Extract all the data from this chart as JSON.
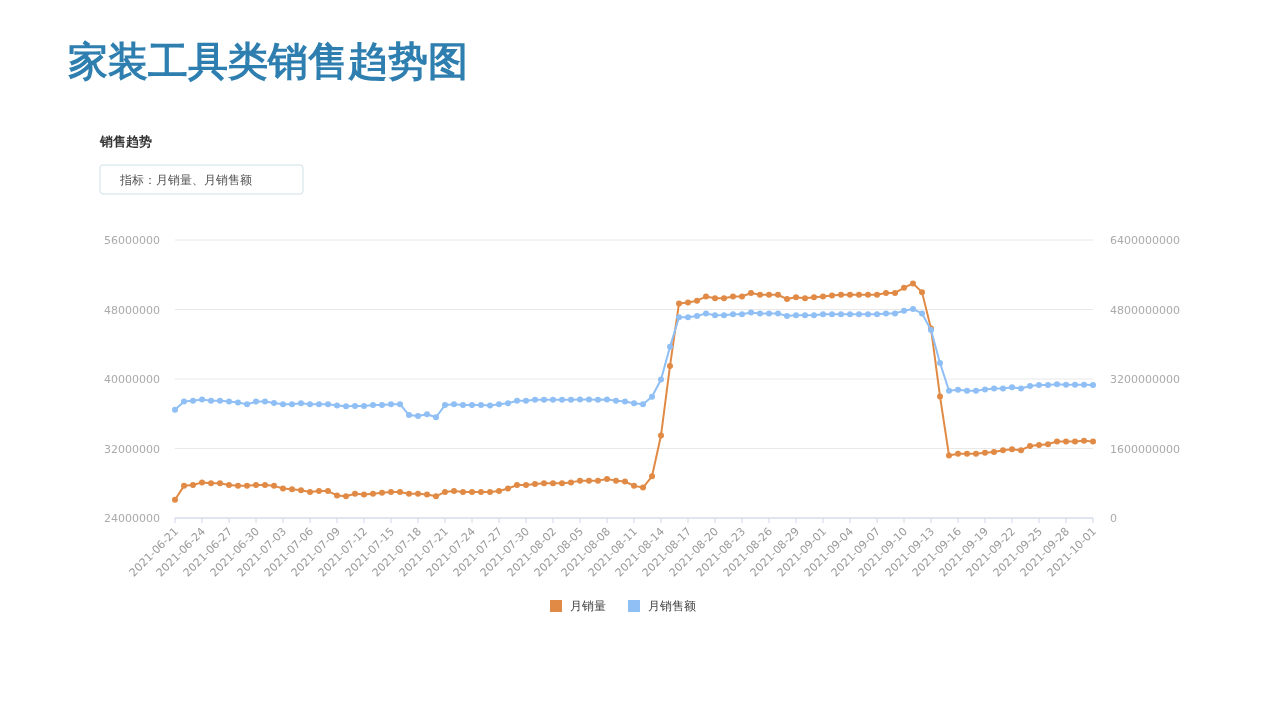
{
  "chart_data": {
    "type": "line",
    "title": "家装工具类销售趋势图",
    "subtitle": "销售趋势",
    "annotations": [
      "指标：月销量、月销售额"
    ],
    "categories": [
      "2021-06-21",
      null,
      null,
      "2021-06-24",
      null,
      null,
      "2021-06-27",
      null,
      null,
      "2021-06-30",
      null,
      null,
      "2021-07-03",
      null,
      null,
      "2021-07-06",
      null,
      null,
      "2021-07-09",
      null,
      null,
      "2021-07-12",
      null,
      null,
      "2021-07-15",
      null,
      null,
      "2021-07-18",
      null,
      null,
      "2021-07-21",
      null,
      null,
      "2021-07-24",
      null,
      null,
      "2021-07-27",
      null,
      null,
      "2021-07-30",
      null,
      null,
      "2021-08-02",
      null,
      null,
      "2021-08-05",
      null,
      null,
      "2021-08-08",
      null,
      null,
      "2021-08-11",
      null,
      null,
      "2021-08-14",
      null,
      null,
      "2021-08-17",
      null,
      null,
      "2021-08-20",
      null,
      null,
      "2021-08-23",
      null,
      null,
      "2021-08-26",
      null,
      null,
      "2021-08-29",
      null,
      null,
      "2021-09-01",
      null,
      null,
      "2021-09-04",
      null,
      null,
      "2021-09-07",
      null,
      null,
      "2021-09-10",
      null,
      null,
      "2021-09-13",
      null,
      null,
      "2021-09-16",
      null,
      null,
      "2021-09-19",
      null,
      null,
      "2021-09-22",
      null,
      null,
      "2021-09-25",
      null,
      null,
      "2021-09-28",
      null,
      null,
      "2021-10-01"
    ],
    "series": [
      {
        "name": "月销量",
        "color": "#e08a45",
        "values": [
          26100000,
          27700000,
          27800000,
          28100000,
          28000000,
          28000000,
          27800000,
          27700000,
          27700000,
          27800000,
          27800000,
          27700000,
          27400000,
          27300000,
          27200000,
          27000000,
          27100000,
          27100000,
          26600000,
          26500000,
          26800000,
          26700000,
          26800000,
          26900000,
          27000000,
          27000000,
          26800000,
          26800000,
          26700000,
          26500000,
          27000000,
          27100000,
          27000000,
          27000000,
          27000000,
          27000000,
          27100000,
          27400000,
          27800000,
          27800000,
          27900000,
          28000000,
          28000000,
          28000000,
          28100000,
          28300000,
          28300000,
          28300000,
          28500000,
          28300000,
          28200000,
          27700000,
          27500000,
          28800000,
          33500000,
          41500000,
          48700000,
          48800000,
          49000000,
          49500000,
          49300000,
          49300000,
          49500000,
          49500000,
          49900000,
          49700000,
          49700000,
          49700000,
          49200000,
          49400000,
          49300000,
          49400000,
          49500000,
          49600000,
          49700000,
          49700000,
          49700000,
          49700000,
          49700000,
          49900000,
          49900000,
          50500000,
          51000000,
          50000000,
          45800000,
          38000000,
          31200000,
          31400000,
          31400000,
          31400000,
          31500000,
          31600000,
          31800000,
          31900000,
          31800000,
          32300000,
          32400000,
          32500000,
          32800000,
          32800000,
          32800000,
          32900000,
          32800000
        ]
      },
      {
        "name": "月销售额",
        "color": "#8fbff5",
        "axis": "y2",
        "values": [
          2490000000,
          2680000000,
          2700000000,
          2730000000,
          2700000000,
          2700000000,
          2680000000,
          2660000000,
          2620000000,
          2680000000,
          2680000000,
          2650000000,
          2620000000,
          2620000000,
          2640000000,
          2620000000,
          2620000000,
          2620000000,
          2590000000,
          2570000000,
          2580000000,
          2580000000,
          2600000000,
          2600000000,
          2620000000,
          2620000000,
          2370000000,
          2350000000,
          2390000000,
          2320000000,
          2600000000,
          2620000000,
          2600000000,
          2600000000,
          2600000000,
          2590000000,
          2620000000,
          2640000000,
          2700000000,
          2700000000,
          2720000000,
          2720000000,
          2720000000,
          2720000000,
          2720000000,
          2730000000,
          2730000000,
          2720000000,
          2730000000,
          2700000000,
          2680000000,
          2640000000,
          2620000000,
          2790000000,
          3190000000,
          3940000000,
          4620000000,
          4620000000,
          4650000000,
          4710000000,
          4670000000,
          4670000000,
          4690000000,
          4690000000,
          4730000000,
          4710000000,
          4710000000,
          4710000000,
          4650000000,
          4670000000,
          4670000000,
          4670000000,
          4690000000,
          4690000000,
          4690000000,
          4690000000,
          4690000000,
          4690000000,
          4690000000,
          4710000000,
          4710000000,
          4770000000,
          4810000000,
          4710000000,
          4330000000,
          3570000000,
          2930000000,
          2950000000,
          2930000000,
          2930000000,
          2960000000,
          2980000000,
          2980000000,
          3010000000,
          2980000000,
          3040000000,
          3060000000,
          3060000000,
          3080000000,
          3070000000,
          3070000000,
          3070000000,
          3060000000
        ]
      }
    ],
    "ylim": [
      24000000,
      56000000
    ],
    "yticks": [
      24000000,
      32000000,
      40000000,
      48000000,
      56000000
    ],
    "y2lim": [
      0,
      6400000000
    ],
    "y2ticks": [
      0,
      1600000000,
      3200000000,
      4800000000,
      6400000000
    ],
    "grid": "y",
    "legend": "bottom",
    "marker": "circle"
  }
}
